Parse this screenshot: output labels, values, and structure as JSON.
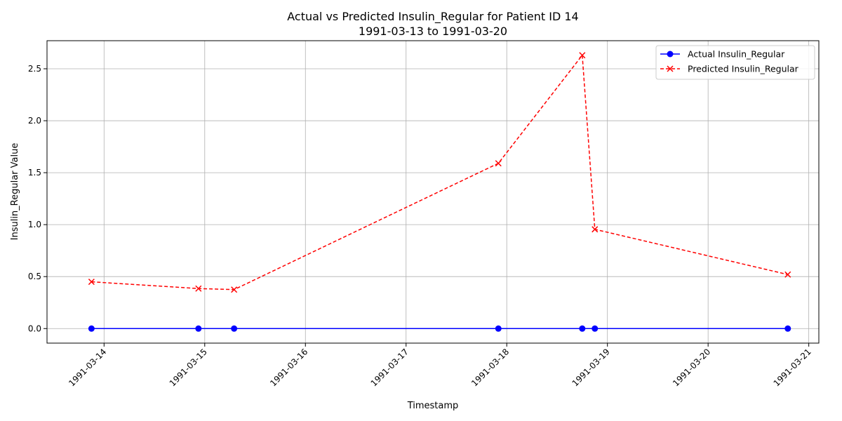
{
  "chart_data": {
    "type": "line",
    "title": "Actual vs Predicted Insulin_Regular for Patient ID 14",
    "subtitle": "1991-03-13 to 1991-03-20",
    "xlabel": "Timestamp",
    "ylabel": "Insulin_Regular Value",
    "x_tick_labels": [
      "1991-03-14",
      "1991-03-15",
      "1991-03-16",
      "1991-03-17",
      "1991-03-18",
      "1991-03-19",
      "1991-03-20",
      "1991-03-21"
    ],
    "y_tick_labels": [
      "0.0",
      "0.5",
      "1.0",
      "1.5",
      "2.0",
      "2.5"
    ],
    "y_ticks": [
      0.0,
      0.5,
      1.0,
      1.5,
      2.0,
      2.5
    ],
    "xlim": [
      "1991-03-13 10:24",
      "1991-03-21 02:24"
    ],
    "ylim": [
      -0.14,
      2.77
    ],
    "grid": true,
    "legend_position": "top-right",
    "series": [
      {
        "name": "Actual Insulin_Regular",
        "color": "#0000ff",
        "line_style": "solid",
        "marker": "circle",
        "x": [
          "1991-03-13 21:00",
          "1991-03-14 22:30",
          "1991-03-15 07:00",
          "1991-03-17 22:00",
          "1991-03-18 18:00",
          "1991-03-18 21:00",
          "1991-03-20 19:00"
        ],
        "values": [
          0,
          0,
          0,
          0,
          0,
          0,
          0
        ]
      },
      {
        "name": "Predicted Insulin_Regular",
        "color": "#ff0000",
        "line_style": "dashed",
        "marker": "x",
        "x": [
          "1991-03-13 21:00",
          "1991-03-14 22:30",
          "1991-03-15 07:00",
          "1991-03-17 22:00",
          "1991-03-18 18:00",
          "1991-03-18 21:00",
          "1991-03-20 19:00"
        ],
        "values": [
          0.45,
          0.385,
          0.375,
          1.59,
          2.63,
          0.955,
          0.52
        ]
      }
    ]
  }
}
